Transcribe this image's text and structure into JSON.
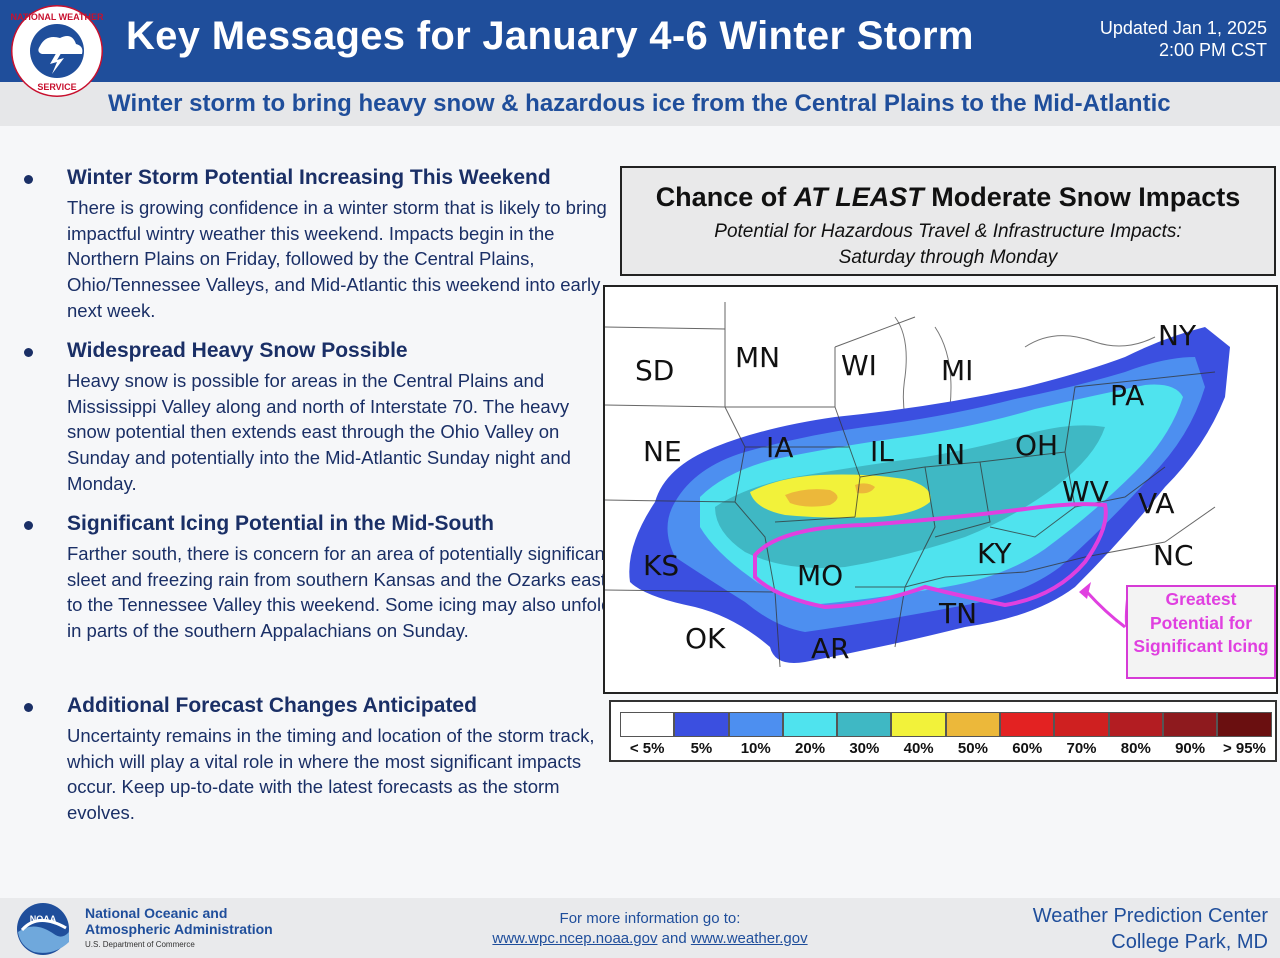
{
  "header": {
    "title": "Key Messages for January 4-6 Winter Storm",
    "updated_line1": "Updated Jan 1, 2025",
    "updated_line2": "2:00 PM CST",
    "logo_text": "NATIONAL WEATHER SERVICE",
    "subtitle": "Winter storm to bring heavy snow & hazardous ice from the Central Plains to the Mid-Atlantic",
    "colors": {
      "header_bg": "#1f4e9b",
      "subbar_bg": "#e6e7e9"
    }
  },
  "messages": [
    {
      "heading": "Winter Storm Potential Increasing This Weekend",
      "body": "There is growing confidence in a winter storm that is likely to bring impactful wintry weather this weekend. Impacts begin in the Northern Plains on Friday, followed by the Central Plains, Ohio/Tennessee Valleys, and Mid-Atlantic this weekend into early next week."
    },
    {
      "heading": "Widespread Heavy Snow Possible",
      "body": "Heavy snow is possible for areas in the Central Plains and Mississippi Valley along and north of Interstate 70. The heavy snow potential then extends east through the Ohio Valley on Sunday and potentially into the Mid-Atlantic Sunday night and Monday."
    },
    {
      "heading": "Significant Icing Potential in the Mid-South",
      "body": "Farther south, there is concern for an area of potentially significant sleet and freezing rain from southern Kansas and the Ozarks east to the Tennessee Valley this weekend. Some icing may also unfold in parts of the southern Appalachians on Sunday."
    },
    {
      "heading": "Additional Forecast Changes Anticipated",
      "body": "Uncertainty remains in the timing and location of the storm track, which will play a vital role in where the most significant impacts occur. Keep up-to-date with the latest forecasts as the storm evolves."
    }
  ],
  "map_panel": {
    "title_pre": "Chance of ",
    "title_emph": "AT LEAST",
    "title_post": " Moderate Snow Impacts",
    "subtitle_line1": "Potential for Hazardous Travel & Infrastructure Impacts:",
    "subtitle_line2": "Saturday through Monday",
    "state_labels": [
      "SD",
      "MN",
      "WI",
      "MI",
      "NY",
      "PA",
      "NE",
      "IA",
      "IL",
      "IN",
      "OH",
      "WV",
      "VA",
      "KS",
      "MO",
      "KY",
      "NC",
      "OK",
      "AR",
      "TN"
    ],
    "callout": "Greatest Potential for Significant Icing",
    "callout_color": "#e040e0",
    "legend": [
      {
        "label": "< 5%",
        "color": "#ffffff"
      },
      {
        "label": "5%",
        "color": "#3b4fe0"
      },
      {
        "label": "10%",
        "color": "#4d8ff0"
      },
      {
        "label": "20%",
        "color": "#4fe3ee"
      },
      {
        "label": "30%",
        "color": "#3fb8c4"
      },
      {
        "label": "40%",
        "color": "#f2f23a"
      },
      {
        "label": "50%",
        "color": "#ecb83a"
      },
      {
        "label": "60%",
        "color": "#e32222"
      },
      {
        "label": "70%",
        "color": "#cf2020"
      },
      {
        "label": "80%",
        "color": "#b31d22"
      },
      {
        "label": "90%",
        "color": "#8e1a1e"
      },
      {
        "label": "> 95%",
        "color": "#6a0f10"
      }
    ]
  },
  "footer": {
    "org_line1": "National Oceanic and",
    "org_line2": "Atmospheric Administration",
    "dept": "U.S. Department of Commerce",
    "noaa_badge": "NOAA",
    "more_info": "For more information go to:",
    "link1": "www.wpc.ncep.noaa.gov",
    "and": " and ",
    "link2": "www.weather.gov",
    "center_line1": "Weather Prediction Center",
    "center_line2": "College Park, MD"
  }
}
